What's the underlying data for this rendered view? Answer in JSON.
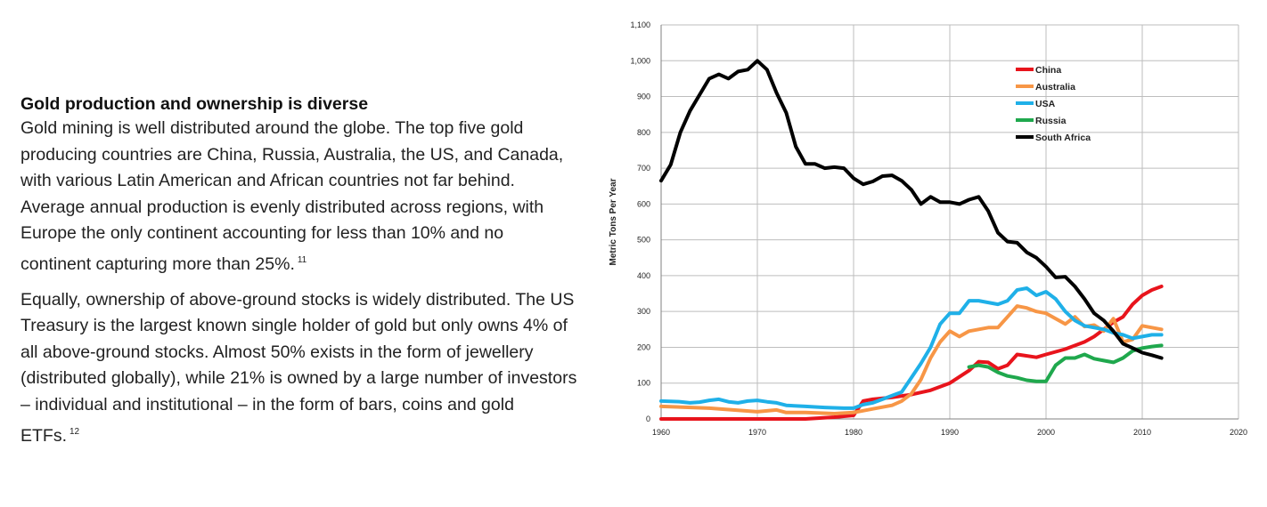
{
  "article": {
    "heading": "Gold production and ownership is diverse",
    "para1": "Gold mining is well distributed around the globe. The top five gold producing countries are China, Russia, Australia, the US, and Canada, with various Latin American and African countries not far behind. Average annual production is evenly distributed across regions, with Europe the only continent accounting for less than 10% and no continent capturing more than 25%.",
    "para1_note": "11",
    "para2": "Equally, ownership of above-ground stocks is widely distributed. The US Treasury is the largest known single holder of gold but only owns 4% of all above-ground stocks. Almost 50% exists in the form of jewellery (distributed globally), while 21% is owned by a large number of investors – individual and institutional – in the form of bars, coins and gold ETFs.",
    "para2_note": "12"
  },
  "chart_data": {
    "type": "line",
    "ylabel": "Metric Tons Per Year",
    "xlim": [
      1960,
      2020
    ],
    "ylim": [
      0,
      1100
    ],
    "xticks": [
      1960,
      1970,
      1980,
      1990,
      2000,
      2010,
      2020
    ],
    "yticks": [
      0,
      100,
      200,
      300,
      400,
      500,
      600,
      700,
      800,
      900,
      1000,
      1100
    ],
    "ytick_labels": [
      "0",
      "100",
      "200",
      "300",
      "400",
      "500",
      "600",
      "700",
      "800",
      "900",
      "1,000",
      "1,100"
    ],
    "grid": true,
    "legend_position": "top-right",
    "series": [
      {
        "name": "China",
        "color": "#e8141c",
        "x": [
          1960,
          1965,
          1970,
          1975,
          1978,
          1980,
          1981,
          1982,
          1984,
          1986,
          1988,
          1990,
          1992,
          1993,
          1994,
          1995,
          1996,
          1997,
          1999,
          2000,
          2002,
          2004,
          2005,
          2006,
          2007,
          2008,
          2009,
          2010,
          2011,
          2012
        ],
        "y": [
          0,
          0,
          0,
          0,
          5,
          10,
          50,
          55,
          60,
          68,
          80,
          100,
          135,
          160,
          158,
          140,
          150,
          180,
          172,
          180,
          195,
          215,
          230,
          250,
          270,
          285,
          320,
          345,
          360,
          370
        ]
      },
      {
        "name": "Australia",
        "color": "#f79646",
        "x": [
          1960,
          1965,
          1970,
          1972,
          1973,
          1975,
          1978,
          1980,
          1982,
          1984,
          1985,
          1986,
          1987,
          1988,
          1989,
          1990,
          1991,
          1992,
          1993,
          1994,
          1995,
          1996,
          1997,
          1998,
          1999,
          2000,
          2001,
          2002,
          2003,
          2004,
          2005,
          2006,
          2007,
          2008,
          2009,
          2010,
          2011,
          2012
        ],
        "y": [
          35,
          30,
          20,
          25,
          18,
          18,
          15,
          18,
          28,
          38,
          50,
          70,
          110,
          170,
          215,
          245,
          230,
          245,
          250,
          255,
          255,
          285,
          315,
          310,
          300,
          295,
          280,
          265,
          285,
          258,
          262,
          245,
          280,
          215,
          222,
          260,
          255,
          250
        ]
      },
      {
        "name": "USA",
        "color": "#1fb0e8",
        "x": [
          1960,
          1962,
          1963,
          1964,
          1965,
          1966,
          1967,
          1968,
          1969,
          1970,
          1971,
          1972,
          1973,
          1975,
          1977,
          1979,
          1980,
          1981,
          1982,
          1983,
          1984,
          1985,
          1986,
          1987,
          1988,
          1989,
          1990,
          1991,
          1992,
          1993,
          1994,
          1995,
          1996,
          1997,
          1998,
          1999,
          2000,
          2001,
          2002,
          2003,
          2004,
          2005,
          2006,
          2007,
          2008,
          2009,
          2010,
          2011,
          2012
        ],
        "y": [
          50,
          48,
          45,
          47,
          52,
          55,
          48,
          45,
          50,
          52,
          48,
          45,
          38,
          35,
          32,
          30,
          30,
          40,
          45,
          55,
          65,
          75,
          115,
          155,
          200,
          265,
          295,
          295,
          330,
          330,
          325,
          320,
          330,
          360,
          365,
          345,
          355,
          335,
          300,
          275,
          260,
          255,
          250,
          240,
          235,
          225,
          230,
          235,
          235
        ]
      },
      {
        "name": "Russia",
        "color": "#1fa84d",
        "x": [
          1992,
          1993,
          1994,
          1995,
          1996,
          1997,
          1998,
          1999,
          2000,
          2001,
          2002,
          2003,
          2004,
          2005,
          2006,
          2007,
          2008,
          2009,
          2010,
          2011,
          2012
        ],
        "y": [
          145,
          150,
          145,
          130,
          120,
          115,
          108,
          105,
          105,
          150,
          170,
          170,
          180,
          168,
          163,
          158,
          170,
          190,
          198,
          202,
          205
        ]
      },
      {
        "name": "South Africa",
        "color": "#000000",
        "x": [
          1960,
          1961,
          1962,
          1963,
          1964,
          1965,
          1966,
          1967,
          1968,
          1969,
          1970,
          1971,
          1972,
          1973,
          1974,
          1975,
          1976,
          1977,
          1978,
          1979,
          1980,
          1981,
          1982,
          1983,
          1984,
          1985,
          1986,
          1987,
          1988,
          1989,
          1990,
          1991,
          1992,
          1993,
          1994,
          1995,
          1996,
          1997,
          1998,
          1999,
          2000,
          2001,
          2002,
          2003,
          2004,
          2005,
          2006,
          2007,
          2008,
          2009,
          2010,
          2011,
          2012
        ],
        "y": [
          665,
          710,
          800,
          860,
          905,
          950,
          962,
          950,
          970,
          975,
          1000,
          975,
          910,
          855,
          760,
          712,
          712,
          700,
          703,
          700,
          672,
          655,
          663,
          678,
          680,
          665,
          640,
          600,
          620,
          605,
          605,
          600,
          612,
          620,
          580,
          520,
          495,
          492,
          465,
          450,
          425,
          395,
          397,
          370,
          335,
          295,
          275,
          245,
          210,
          198,
          185,
          178,
          170
        ]
      }
    ]
  }
}
